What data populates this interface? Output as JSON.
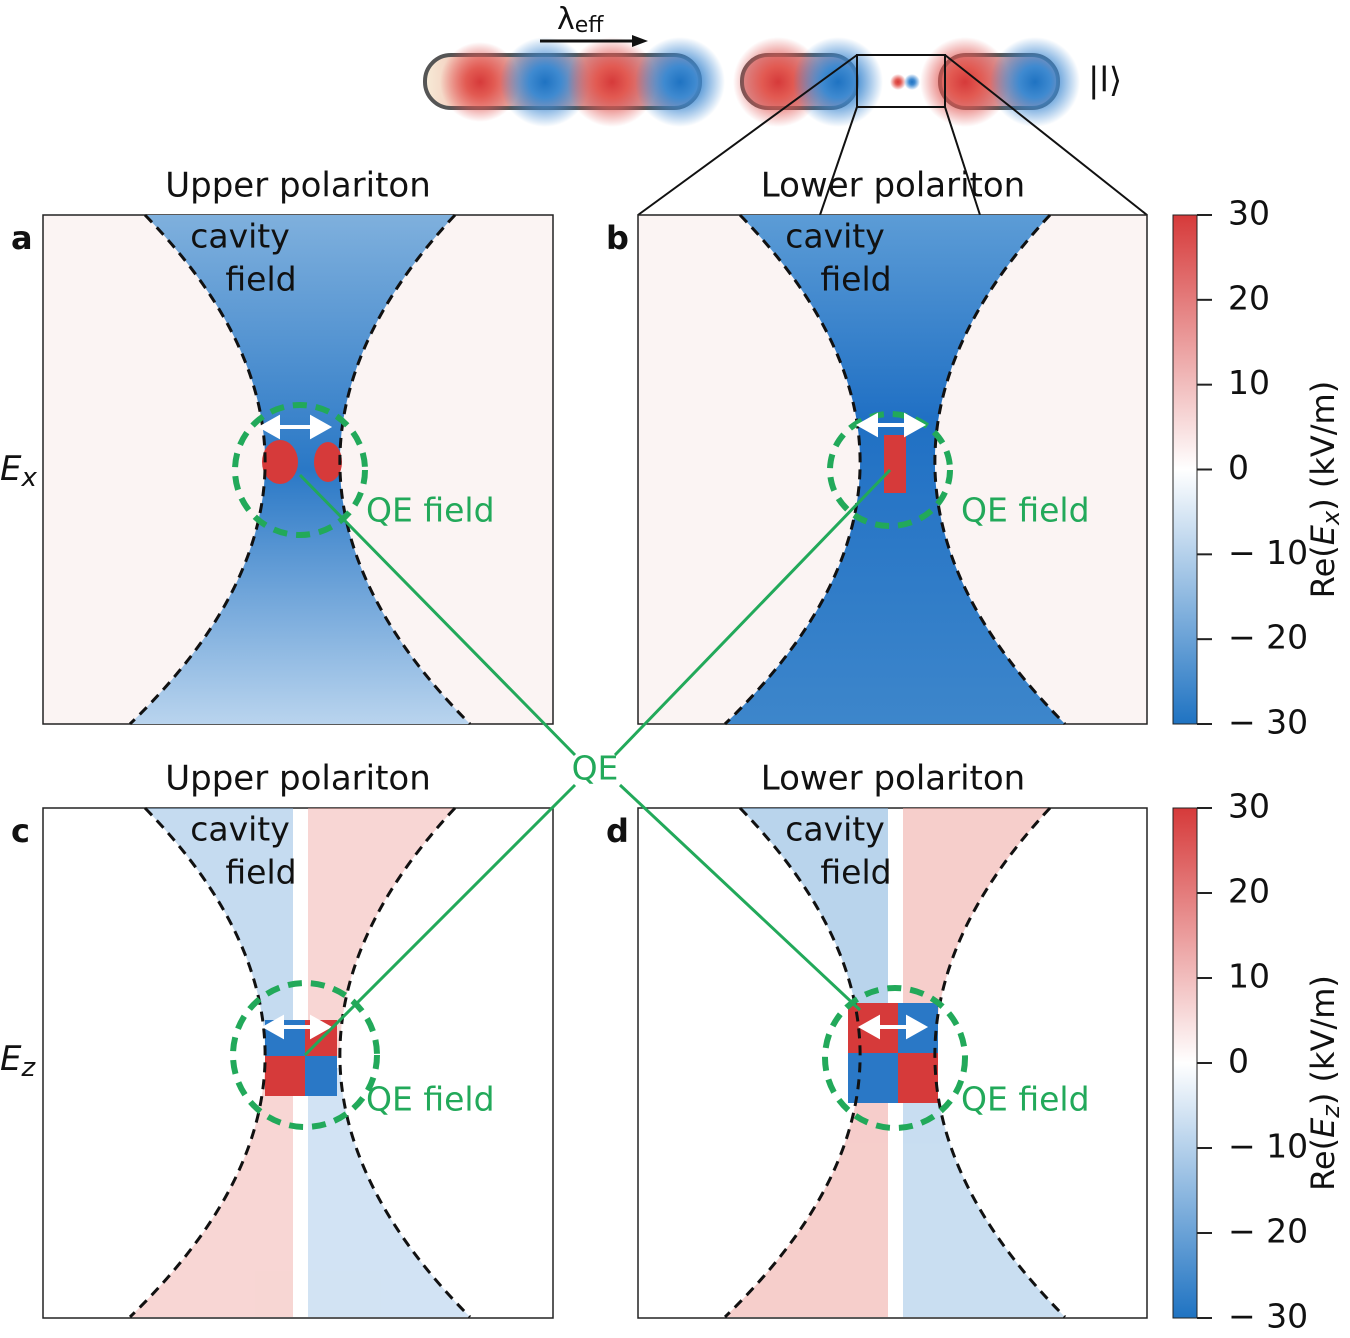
{
  "top": {
    "lambda": "λ",
    "lambda_sub": "eff",
    "state": "|l⟩"
  },
  "panels": [
    {
      "letter": "a",
      "title": "Upper polariton",
      "cavity": [
        "cavity",
        "field"
      ],
      "qe": "QE field"
    },
    {
      "letter": "b",
      "title": "Lower polariton",
      "cavity": [
        "cavity",
        "field"
      ],
      "qe": "QE field"
    },
    {
      "letter": "c",
      "title": "Upper polariton",
      "cavity": [
        "cavity",
        "field"
      ],
      "qe": "QE field"
    },
    {
      "letter": "d",
      "title": "Lower polariton",
      "cavity": [
        "cavity",
        "field"
      ],
      "qe": "QE field"
    }
  ],
  "rows": [
    {
      "symbol": "E",
      "sub": "x"
    },
    {
      "symbol": "E",
      "sub": "z"
    }
  ],
  "qe_label": "QE",
  "colorbars": [
    {
      "prefix": "Re(",
      "symbol": "E",
      "sub": "x",
      "suffix": ")  (kV/m)",
      "lim": [
        -30,
        30
      ],
      "ticks": [
        30,
        20,
        10,
        0,
        {
          "value": -10,
          "label": "− 10"
        },
        {
          "value": -20,
          "label": "− 20"
        },
        {
          "value": -30,
          "label": "− 30"
        }
      ]
    },
    {
      "prefix": "Re(",
      "symbol": "E",
      "sub": "z",
      "suffix": ")  (kV/m)",
      "lim": [
        -30,
        30
      ],
      "ticks": [
        30,
        20,
        10,
        0,
        {
          "value": -10,
          "label": "− 10"
        },
        {
          "value": -20,
          "label": "− 20"
        },
        {
          "value": -30,
          "label": "− 30"
        }
      ]
    }
  ]
}
